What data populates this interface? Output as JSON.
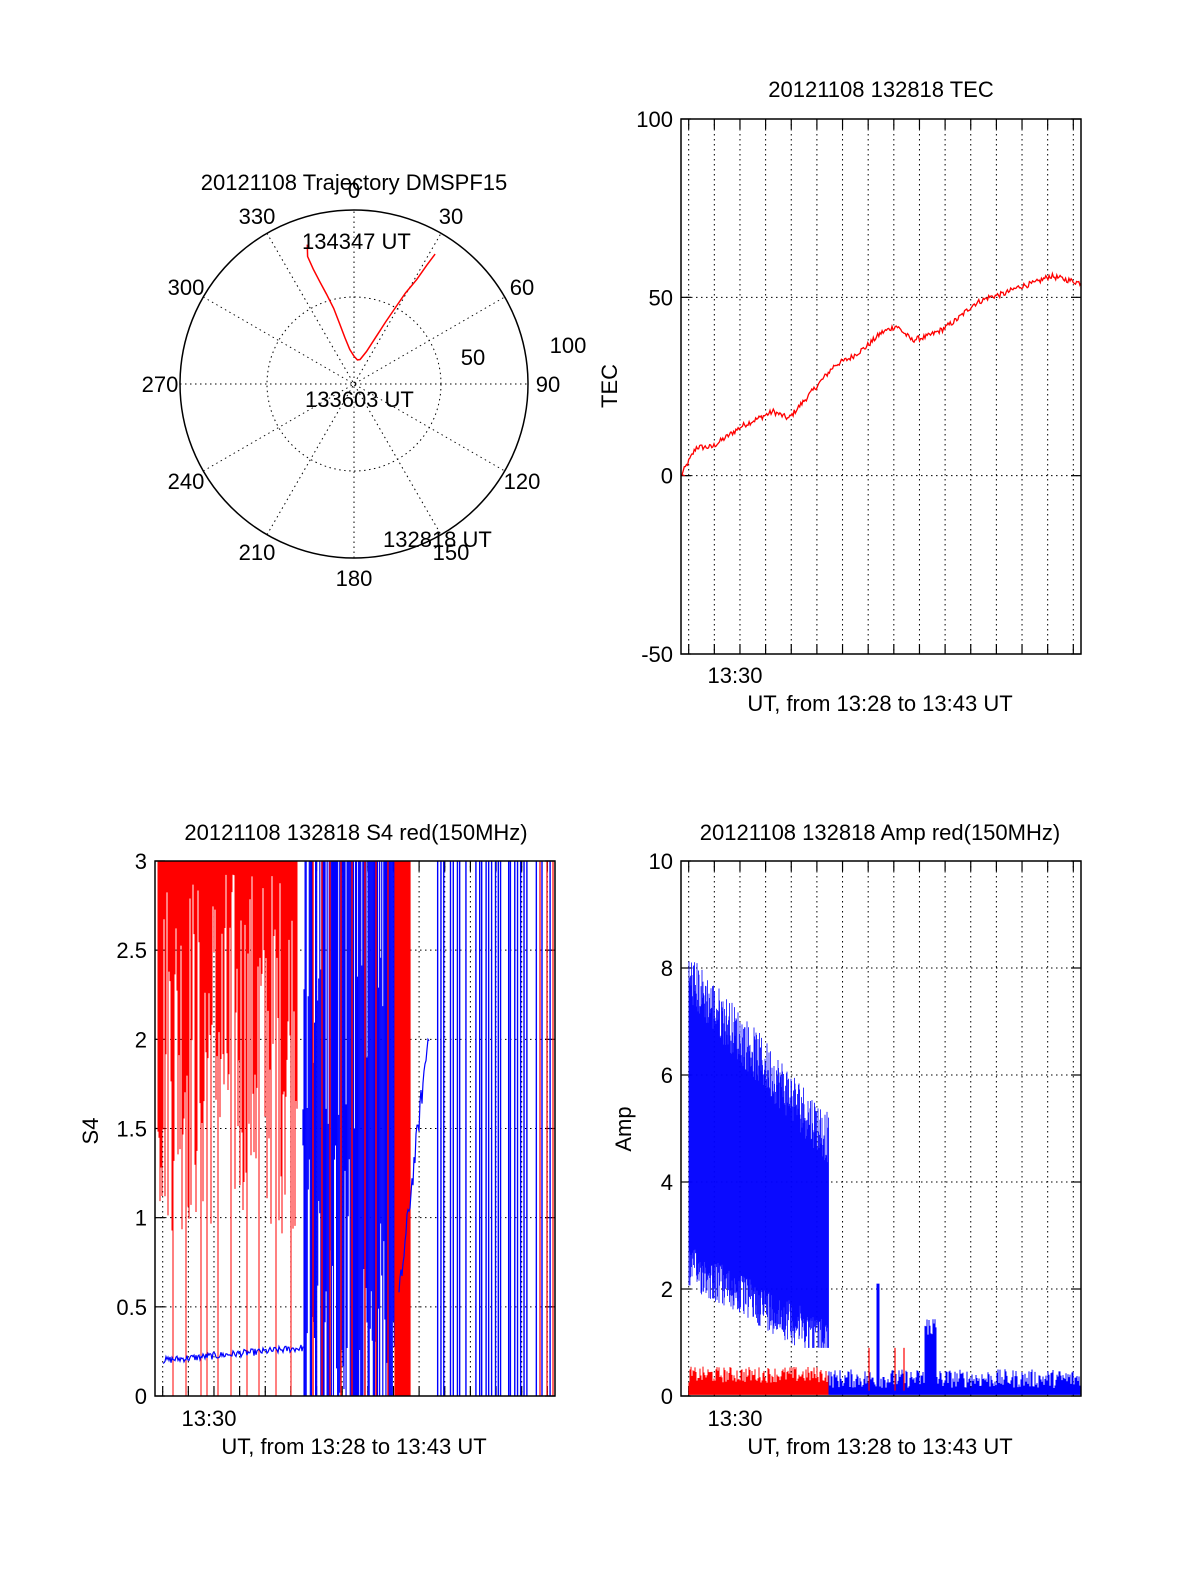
{
  "chart_data": [
    {
      "id": "polar",
      "type": "scatter",
      "title": "20121108 Trajectory DMSPF15",
      "angle_labels": [
        "0",
        "30",
        "60",
        "90",
        "120",
        "150",
        "180",
        "210",
        "240",
        "270",
        "300",
        "330"
      ],
      "radial_labels": [
        "50",
        "100"
      ],
      "rlim": [
        0,
        100
      ],
      "grid": true,
      "series": [
        {
          "color": "#ff0000",
          "points": [
            [
              341.5,
              84.5
            ],
            [
              340,
              78
            ],
            [
              340.5,
              70
            ],
            [
              341.5,
              62
            ],
            [
              343,
              54
            ],
            [
              345,
              45
            ],
            [
              346.5,
              36
            ],
            [
              349,
              27
            ],
            [
              353,
              20
            ],
            [
              0,
              16
            ],
            [
              8,
              14
            ],
            [
              14,
              14.5
            ],
            [
              21,
              20
            ],
            [
              25,
              30
            ],
            [
              27,
              40
            ],
            [
              28.5,
              50
            ],
            [
              29.5,
              60
            ],
            [
              31,
              70
            ],
            [
              31.5,
              80
            ],
            [
              32,
              88
            ]
          ]
        }
      ],
      "annotations": [
        {
          "text": "134347 UT",
          "angle": 341.5,
          "radius": 84.5
        },
        {
          "text": "133603 UT",
          "angle": 180,
          "radius": 10
        },
        {
          "text": "132818 UT",
          "angle": 152,
          "radius": 92
        }
      ]
    },
    {
      "id": "tec",
      "type": "line",
      "title": "20121108 132818 TEC",
      "xlabel": "UT, from 13:28 to 13:43 UT",
      "ylabel": "TEC",
      "xlim": [
        13.47,
        13.73
      ],
      "ylim": [
        -50,
        100
      ],
      "yticks": [
        -50,
        0,
        50,
        100
      ],
      "ytick_labels": [
        "-50",
        "0",
        "50",
        "100"
      ],
      "xtick_label": "13:30",
      "grid": true,
      "series": [
        {
          "color": "#ff0000",
          "x": [
            13.47,
            13.48,
            13.49,
            13.5,
            13.51,
            13.52,
            13.53,
            13.54,
            13.55,
            13.56,
            13.57,
            13.58,
            13.59,
            13.6,
            13.61,
            13.62,
            13.63,
            13.64,
            13.65,
            13.66,
            13.67,
            13.68,
            13.69,
            13.7,
            13.71,
            13.72,
            13.73
          ],
          "values": [
            0,
            8,
            8,
            11,
            14,
            16,
            18,
            16,
            21,
            26,
            31,
            33,
            36,
            40,
            42,
            38,
            39,
            41,
            44,
            48,
            50,
            51,
            53,
            54,
            56,
            55,
            54
          ]
        }
      ]
    },
    {
      "id": "s4",
      "type": "line",
      "title": "20121108 132818 S4 red(150MHz)",
      "xlabel": "UT, from 13:28 to 13:43 UT",
      "ylabel": "S4",
      "xlim": [
        13.47,
        13.73
      ],
      "ylim": [
        0,
        3
      ],
      "yticks": [
        0,
        0.5,
        1,
        1.5,
        2,
        2.5,
        3
      ],
      "ytick_labels": [
        "0",
        "0.5",
        "1",
        "1.5",
        "2",
        "2.5",
        "3"
      ],
      "xtick_label": "13:30",
      "grid": true,
      "series": [
        {
          "color": "#ff0000",
          "description_values": "red channel saturates near 3 with frequent drops; sparse spikes to 0",
          "x": [
            13.47,
            13.475,
            13.48,
            13.485,
            13.49,
            13.495,
            13.5,
            13.505,
            13.51,
            13.515,
            13.52,
            13.525,
            13.53,
            13.535,
            13.54,
            13.545,
            13.55,
            13.555,
            13.56,
            13.565
          ],
          "values": [
            2.6,
            2.9,
            2.4,
            3,
            2.2,
            2.8,
            1.5,
            3,
            2.7,
            2.1,
            2.9,
            2.6,
            3,
            2.5,
            2.2,
            3,
            2.8,
            2.1,
            3,
            2.9
          ]
        },
        {
          "color": "#0000ff",
          "x": [
            13.47,
            13.48,
            13.49,
            13.5,
            13.51,
            13.52,
            13.53,
            13.54,
            13.55,
            13.56,
            13.565
          ],
          "values": [
            0.2,
            0.21,
            0.2,
            0.22,
            0.21,
            0.23,
            0.22,
            0.24,
            0.25,
            0.26,
            0.27
          ]
        }
      ]
    },
    {
      "id": "amp",
      "type": "line",
      "title": "20121108 132818 Amp red(150MHz)",
      "xlabel": "UT, from 13:28 to 13:43 UT",
      "ylabel": "Amp",
      "xlim": [
        13.47,
        13.73
      ],
      "ylim": [
        0,
        10
      ],
      "yticks": [
        0,
        2,
        4,
        6,
        8,
        10
      ],
      "ytick_labels": [
        "0",
        "2",
        "4",
        "6",
        "8",
        "10"
      ],
      "xtick_label": "13:30",
      "grid": true,
      "series": [
        {
          "color": "#0000ff",
          "x": [
            13.475,
            13.49,
            13.5,
            13.51,
            13.52,
            13.53,
            13.54,
            13.55,
            13.56,
            13.565
          ],
          "upper": [
            7.5,
            7.2,
            6.9,
            6.5,
            6.2,
            5.8,
            5.5,
            5.2,
            5.0,
            4.9
          ],
          "lower": [
            2.8,
            2.5,
            2.3,
            2.1,
            1.9,
            1.8,
            1.7,
            1.6,
            1.5,
            1.3
          ]
        },
        {
          "color": "#ff0000",
          "x": [
            13.475,
            13.5,
            13.53,
            13.565
          ],
          "upper": [
            0.45,
            0.42,
            0.4,
            0.38
          ],
          "lower": [
            0.02,
            0.02,
            0.02,
            0.02
          ]
        }
      ]
    }
  ]
}
